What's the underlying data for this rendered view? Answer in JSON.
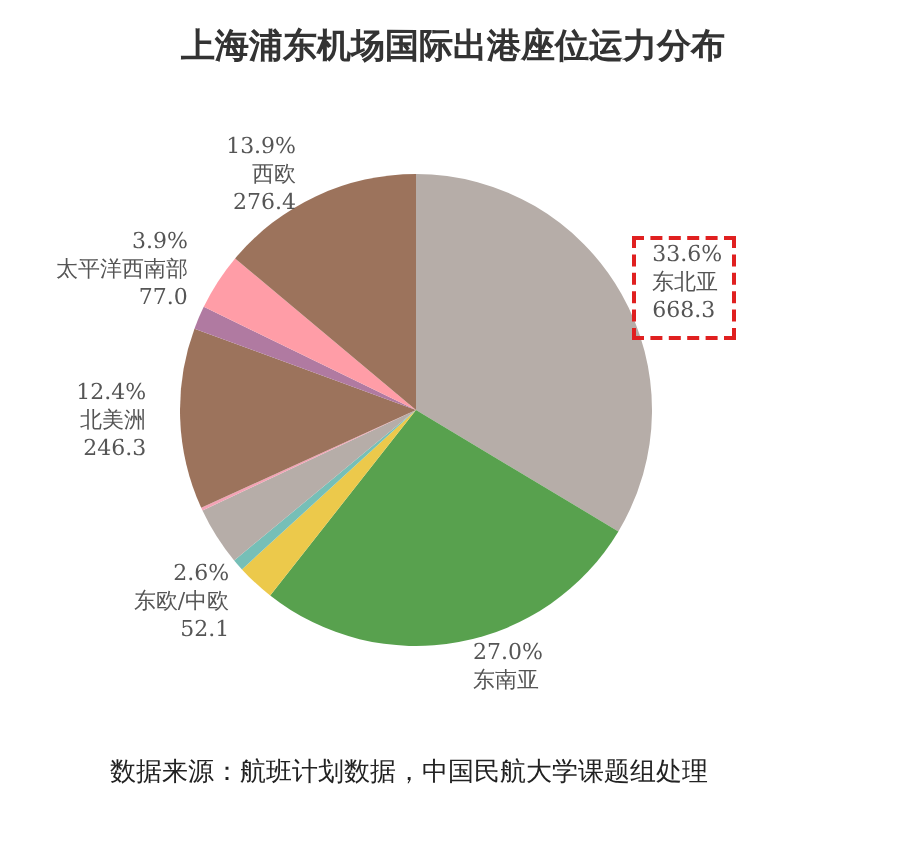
{
  "chart_data": {
    "type": "pie",
    "title": "上海浦东机场国际出港座位运力分布",
    "categories": [
      "东北亚",
      "东南亚",
      "东欧/中欧",
      null,
      null,
      null,
      "北美洲",
      null,
      "太平洋西南部",
      "西欧"
    ],
    "values": [
      33.6,
      27.0,
      2.6,
      0.8,
      4.0,
      0.2,
      12.4,
      1.6,
      3.9,
      13.9
    ],
    "value_labels": [
      "33.6%\n668.3",
      "27.0%",
      "2.6%\n52.1",
      null,
      null,
      null,
      "12.4%\n246.3",
      null,
      "3.9%\n77.0",
      "13.9%\n276.4"
    ],
    "colors": [
      "#b6ada8",
      "#58a14e",
      "#ecc94b",
      "#76bfb7",
      "#b6ada8",
      "#f3a3b5",
      "#9c735c",
      "#b07aa1",
      "#ff9da7",
      "#9c735c"
    ],
    "annotations": [
      "数据来源：航班计划数据，中国民航大学课题组处理"
    ],
    "legend": false
  }
}
